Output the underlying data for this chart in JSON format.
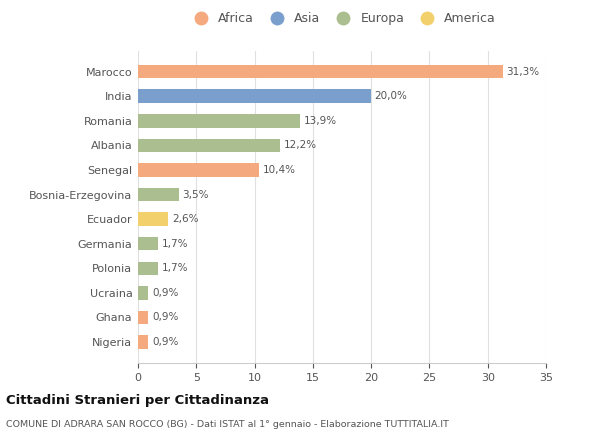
{
  "categories": [
    "Marocco",
    "India",
    "Romania",
    "Albania",
    "Senegal",
    "Bosnia-Erzegovina",
    "Ecuador",
    "Germania",
    "Polonia",
    "Ucraina",
    "Ghana",
    "Nigeria"
  ],
  "values": [
    31.3,
    20.0,
    13.9,
    12.2,
    10.4,
    3.5,
    2.6,
    1.7,
    1.7,
    0.9,
    0.9,
    0.9
  ],
  "labels": [
    "31,3%",
    "20,0%",
    "13,9%",
    "12,2%",
    "10,4%",
    "3,5%",
    "2,6%",
    "1,7%",
    "1,7%",
    "0,9%",
    "0,9%",
    "0,9%"
  ],
  "colors": [
    "#F5A97F",
    "#7B9FCC",
    "#ABBE8F",
    "#ABBE8F",
    "#F5A97F",
    "#ABBE8F",
    "#F2D06B",
    "#ABBE8F",
    "#ABBE8F",
    "#ABBE8F",
    "#F5A97F",
    "#F5A97F"
  ],
  "legend": [
    {
      "label": "Africa",
      "color": "#F5A97F"
    },
    {
      "label": "Asia",
      "color": "#7B9FCC"
    },
    {
      "label": "Europa",
      "color": "#ABBE8F"
    },
    {
      "label": "America",
      "color": "#F2D06B"
    }
  ],
  "xlim": [
    0,
    35
  ],
  "xticks": [
    0,
    5,
    10,
    15,
    20,
    25,
    30,
    35
  ],
  "title": "Cittadini Stranieri per Cittadinanza",
  "subtitle": "COMUNE DI ADRARA SAN ROCCO (BG) - Dati ISTAT al 1° gennaio - Elaborazione TUTTITALIA.IT",
  "background_color": "#FFFFFF",
  "grid_color": "#E0E0E0",
  "bar_height": 0.55,
  "label_fontsize": 7.5,
  "ytick_fontsize": 8,
  "xtick_fontsize": 8
}
